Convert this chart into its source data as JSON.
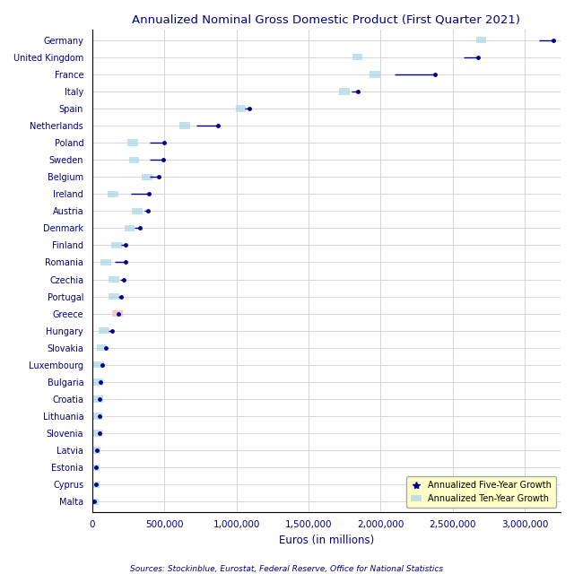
{
  "title": "Annualized Nominal Gross Domestic Product (First Quarter 2021)",
  "xlabel": "Euros (in millions)",
  "source": "Sources: Stockinblue, Eurostat, Federal Reserve, Office for National Statistics",
  "countries": [
    "Germany",
    "United Kingdom",
    "France",
    "Italy",
    "Spain",
    "Netherlands",
    "Poland",
    "Sweden",
    "Belgium",
    "Ireland",
    "Austria",
    "Denmark",
    "Finland",
    "Romania",
    "Czechia",
    "Portugal",
    "Greece",
    "Hungary",
    "Slovakia",
    "Luxembourg",
    "Bulgaria",
    "Croatia",
    "Lithuania",
    "Slovenia",
    "Latvia",
    "Estonia",
    "Cyprus",
    "Malta"
  ],
  "gdp_current": [
    3200000,
    2680000,
    2380000,
    1840000,
    1090000,
    870000,
    500000,
    490000,
    460000,
    390000,
    385000,
    330000,
    230000,
    230000,
    220000,
    200000,
    180000,
    140000,
    95000,
    68000,
    58000,
    52000,
    52000,
    48000,
    34000,
    28000,
    23000,
    12000
  ],
  "gdp_5yr": [
    3100000,
    2580000,
    2100000,
    1800000,
    1060000,
    720000,
    400000,
    400000,
    400000,
    270000,
    360000,
    290000,
    200000,
    155000,
    195000,
    180000,
    172000,
    110000,
    80000,
    54000,
    48000,
    42000,
    42000,
    40000,
    27000,
    22000,
    18000,
    10000
  ],
  "gdp_10yr": [
    2700000,
    1840000,
    1960000,
    1750000,
    1030000,
    640000,
    280000,
    290000,
    380000,
    145000,
    310000,
    258000,
    170000,
    95000,
    150000,
    150000,
    175000,
    80000,
    66000,
    44000,
    36000,
    36000,
    30000,
    32000,
    18000,
    16000,
    14000,
    7000
  ],
  "dot_color": "#00008B",
  "line_color": "#00008B",
  "square_color": "#ADD8E6",
  "greece_square_color": "#FFB6C1",
  "xlim": [
    0,
    3250000
  ],
  "xticks": [
    0,
    500000,
    1000000,
    1500000,
    2000000,
    2500000,
    3000000
  ],
  "xtick_labels": [
    "0",
    "500,000",
    "1,000,000",
    "1,500,000",
    "2,000,000",
    "2,500,000",
    "3,000,000"
  ],
  "figsize": [
    6.4,
    6.4
  ],
  "dpi": 100
}
